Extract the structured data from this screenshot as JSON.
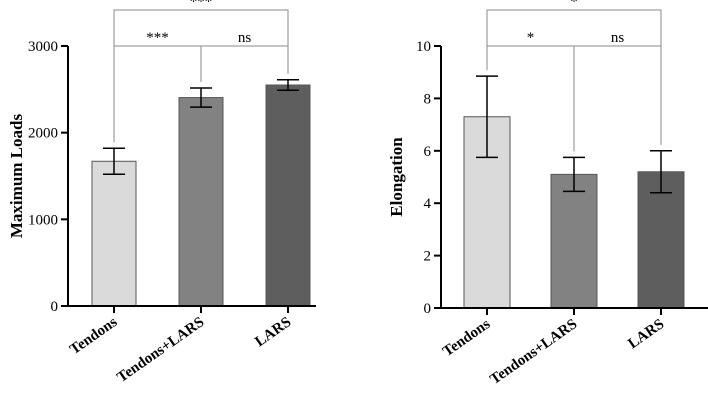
{
  "chart_data": [
    {
      "type": "bar",
      "title": "",
      "xlabel": "",
      "ylabel": "Maximum Loads",
      "ylim": [
        0,
        3000
      ],
      "yticks": [
        0,
        1000,
        2000,
        3000
      ],
      "categories": [
        "Tendons",
        "Tendons+LARS",
        "LARS"
      ],
      "values": [
        1670,
        2405,
        2550
      ],
      "errors": [
        150,
        110,
        60
      ],
      "colors": [
        "#d9dad9",
        "#828282",
        "#5e5e5e"
      ],
      "significance": [
        {
          "from": 0,
          "to": 1,
          "label": "***",
          "level": 1
        },
        {
          "from": 1,
          "to": 2,
          "label": "ns",
          "level": 1
        },
        {
          "from": 0,
          "to": 2,
          "label": "***",
          "level": 2
        }
      ]
    },
    {
      "type": "bar",
      "title": "",
      "xlabel": "",
      "ylabel": "Elongation",
      "ylim": [
        0,
        10
      ],
      "yticks": [
        0,
        2,
        4,
        6,
        8,
        10
      ],
      "categories": [
        "Tendons",
        "Tendons+LARS",
        "LARS"
      ],
      "values": [
        7.3,
        5.1,
        5.2
      ],
      "errors": [
        1.55,
        0.65,
        0.8
      ],
      "colors": [
        "#d9dad9",
        "#828282",
        "#5e5e5e"
      ],
      "significance": [
        {
          "from": 0,
          "to": 1,
          "label": "*",
          "level": 1
        },
        {
          "from": 1,
          "to": 2,
          "label": "ns",
          "level": 1
        },
        {
          "from": 0,
          "to": 2,
          "label": "*",
          "level": 2
        }
      ]
    }
  ]
}
